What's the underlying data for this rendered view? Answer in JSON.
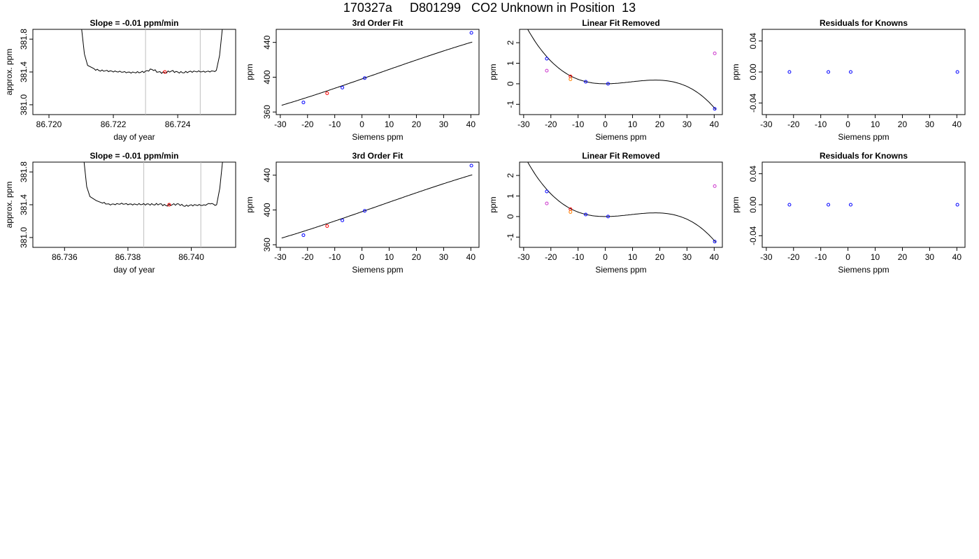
{
  "page_title": "170327a     D801299   CO2 Unknown in Position  13",
  "colors": {
    "trace": "#000000",
    "known": "#0000ff",
    "unknown": "#ff0000",
    "alt_known": "#cc33cc",
    "alt_known2": "#ff8000",
    "window_line": "#bfbfbf"
  },
  "chart_data": [
    {
      "type": "line",
      "title": "Slope =  -0.01  ppm/min",
      "xlabel": "day of year",
      "ylabel": "approx. ppm",
      "xlim": [
        86.7195,
        86.7258
      ],
      "ylim": [
        380.88,
        381.92
      ],
      "x_ticks": [
        "86.720",
        "86.722",
        "86.724"
      ],
      "x_tick_values": [
        86.72,
        86.722,
        86.724
      ],
      "y_ticks": [
        "381.0",
        "381.4",
        "381.8"
      ],
      "y_tick_values": [
        381.0,
        381.4,
        381.8
      ],
      "window": [
        86.723,
        86.7247
      ],
      "trace": [
        [
          86.721,
          381.98
        ],
        [
          86.7211,
          381.62
        ],
        [
          86.7212,
          381.48
        ],
        [
          86.7214,
          381.44
        ],
        [
          86.7216,
          381.41
        ],
        [
          86.7218,
          381.42
        ],
        [
          86.722,
          381.4
        ],
        [
          86.7222,
          381.41
        ],
        [
          86.7224,
          381.39
        ],
        [
          86.7226,
          381.4
        ],
        [
          86.7228,
          381.39
        ],
        [
          86.723,
          381.41
        ],
        [
          86.7232,
          381.43
        ],
        [
          86.7234,
          381.4
        ],
        [
          86.7236,
          381.39
        ],
        [
          86.7238,
          381.41
        ],
        [
          86.724,
          381.4
        ],
        [
          86.7242,
          381.39
        ],
        [
          86.7244,
          381.41
        ],
        [
          86.7246,
          381.4
        ],
        [
          86.7248,
          381.41
        ],
        [
          86.725,
          381.4
        ],
        [
          86.7252,
          381.42
        ],
        [
          86.7253,
          381.6
        ],
        [
          86.7254,
          381.98
        ]
      ],
      "points": [
        {
          "x": 86.7236,
          "y": 381.4,
          "color": "#ff0000"
        }
      ]
    },
    {
      "type": "scatter",
      "title": "3rd Order Fit",
      "xlabel": "Siemens ppm",
      "ylabel": "ppm",
      "xlim": [
        -31.5,
        43.0
      ],
      "ylim": [
        357.0,
        455.0
      ],
      "x_ticks": [
        "-30",
        "-20",
        "-10",
        "0",
        "10",
        "20",
        "30",
        "40"
      ],
      "x_tick_values": [
        -30,
        -20,
        -10,
        0,
        10,
        20,
        30,
        40
      ],
      "y_ticks": [
        "360",
        "400",
        "440"
      ],
      "y_tick_values": [
        360,
        400,
        440
      ],
      "curve": {
        "type": "cubic",
        "from": -29.5,
        "to": 40.5
      },
      "points": [
        {
          "x": -21.5,
          "y": 371.0,
          "color": "#0000ff"
        },
        {
          "x": -12.8,
          "y": 381.5,
          "color": "#ff0000"
        },
        {
          "x": -7.2,
          "y": 388.0,
          "color": "#0000ff"
        },
        {
          "x": 1.0,
          "y": 399.0,
          "color": "#0000ff"
        },
        {
          "x": 40.2,
          "y": 451.0,
          "color": "#0000ff"
        }
      ]
    },
    {
      "type": "scatter",
      "title": "Linear Fit Removed",
      "xlabel": "Siemens ppm",
      "ylabel": "ppm",
      "xlim": [
        -31.5,
        43.0
      ],
      "ylim": [
        -1.5,
        2.65
      ],
      "x_ticks": [
        "-30",
        "-20",
        "-10",
        "0",
        "10",
        "20",
        "30",
        "40"
      ],
      "x_tick_values": [
        -30,
        -20,
        -10,
        0,
        10,
        20,
        30,
        40
      ],
      "y_ticks": [
        "-1",
        "0",
        "1",
        "2"
      ],
      "y_tick_values": [
        -1,
        0,
        1,
        2
      ],
      "curve": {
        "type": "residual-cubic",
        "from": -30,
        "to": 40.5
      },
      "points": [
        {
          "x": -21.5,
          "y": 1.22,
          "color": "#0000ff"
        },
        {
          "x": -21.5,
          "y": 0.64,
          "color": "#cc33cc"
        },
        {
          "x": -12.8,
          "y": 0.36,
          "color": "#ff0000"
        },
        {
          "x": -12.8,
          "y": 0.22,
          "color": "#ff8000"
        },
        {
          "x": -7.2,
          "y": 0.1,
          "color": "#0000ff"
        },
        {
          "x": 1.0,
          "y": 0.0,
          "color": "#0000ff"
        },
        {
          "x": 40.2,
          "y": 1.48,
          "color": "#cc33cc"
        },
        {
          "x": 40.2,
          "y": -1.22,
          "color": "#0000ff"
        }
      ]
    },
    {
      "type": "scatter",
      "title": "Residuals for Knowns",
      "xlabel": "Siemens ppm",
      "ylabel": "ppm",
      "xlim": [
        -31.5,
        43.0
      ],
      "ylim": [
        -0.055,
        0.055
      ],
      "x_ticks": [
        "-30",
        "-20",
        "-10",
        "0",
        "10",
        "20",
        "30",
        "40"
      ],
      "x_tick_values": [
        -30,
        -20,
        -10,
        0,
        10,
        20,
        30,
        40
      ],
      "y_ticks": [
        "-0.04",
        "0.00",
        "0.04"
      ],
      "y_tick_values": [
        -0.04,
        0.0,
        0.04
      ],
      "points": [
        {
          "x": -21.5,
          "y": 0.0,
          "color": "#0000ff"
        },
        {
          "x": -7.2,
          "y": 0.0,
          "color": "#0000ff"
        },
        {
          "x": 1.0,
          "y": 0.0,
          "color": "#0000ff"
        },
        {
          "x": 40.2,
          "y": 0.0,
          "color": "#0000ff"
        }
      ]
    },
    {
      "type": "line",
      "title": "Slope =  -0.01  ppm/min",
      "xlabel": "day of year",
      "ylabel": "approx. ppm",
      "xlim": [
        86.735,
        86.7414
      ],
      "ylim": [
        380.88,
        381.92
      ],
      "x_ticks": [
        "86.736",
        "86.738",
        "86.740"
      ],
      "x_tick_values": [
        86.736,
        86.738,
        86.74
      ],
      "y_ticks": [
        "381.0",
        "381.4",
        "381.8"
      ],
      "y_tick_values": [
        381.0,
        381.4,
        381.8
      ],
      "window": [
        86.7385,
        86.7403
      ],
      "trace": [
        [
          86.7366,
          381.98
        ],
        [
          86.7367,
          381.62
        ],
        [
          86.7368,
          381.5
        ],
        [
          86.737,
          381.45
        ],
        [
          86.7372,
          381.42
        ],
        [
          86.7374,
          381.41
        ],
        [
          86.7376,
          381.4
        ],
        [
          86.7378,
          381.42
        ],
        [
          86.738,
          381.4
        ],
        [
          86.7382,
          381.41
        ],
        [
          86.7384,
          381.4
        ],
        [
          86.7386,
          381.41
        ],
        [
          86.7388,
          381.4
        ],
        [
          86.739,
          381.41
        ],
        [
          86.7392,
          381.39
        ],
        [
          86.7394,
          381.4
        ],
        [
          86.7396,
          381.41
        ],
        [
          86.7398,
          381.38
        ],
        [
          86.74,
          381.4
        ],
        [
          86.7402,
          381.39
        ],
        [
          86.7404,
          381.4
        ],
        [
          86.7406,
          381.41
        ],
        [
          86.7408,
          381.4
        ],
        [
          86.7409,
          381.6
        ],
        [
          86.741,
          381.98
        ]
      ],
      "points": [
        {
          "x": 86.7393,
          "y": 381.4,
          "color": "#ff0000"
        }
      ]
    },
    {
      "type": "scatter",
      "title": "3rd Order Fit",
      "xlabel": "Siemens ppm",
      "ylabel": "ppm",
      "xlim": [
        -31.5,
        43.0
      ],
      "ylim": [
        357.0,
        455.0
      ],
      "x_ticks": [
        "-30",
        "-20",
        "-10",
        "0",
        "10",
        "20",
        "30",
        "40"
      ],
      "x_tick_values": [
        -30,
        -20,
        -10,
        0,
        10,
        20,
        30,
        40
      ],
      "y_ticks": [
        "360",
        "400",
        "440"
      ],
      "y_tick_values": [
        360,
        400,
        440
      ],
      "curve": {
        "type": "cubic",
        "from": -29.5,
        "to": 40.5
      },
      "points": [
        {
          "x": -21.5,
          "y": 371.0,
          "color": "#0000ff"
        },
        {
          "x": -12.8,
          "y": 381.5,
          "color": "#ff0000"
        },
        {
          "x": -7.2,
          "y": 388.0,
          "color": "#0000ff"
        },
        {
          "x": 1.0,
          "y": 399.0,
          "color": "#0000ff"
        },
        {
          "x": 40.2,
          "y": 451.0,
          "color": "#0000ff"
        }
      ]
    },
    {
      "type": "scatter",
      "title": "Linear Fit Removed",
      "xlabel": "Siemens ppm",
      "ylabel": "ppm",
      "xlim": [
        -31.5,
        43.0
      ],
      "ylim": [
        -1.5,
        2.65
      ],
      "x_ticks": [
        "-30",
        "-20",
        "-10",
        "0",
        "10",
        "20",
        "30",
        "40"
      ],
      "x_tick_values": [
        -30,
        -20,
        -10,
        0,
        10,
        20,
        30,
        40
      ],
      "y_ticks": [
        "-1",
        "0",
        "1",
        "2"
      ],
      "y_tick_values": [
        -1,
        0,
        1,
        2
      ],
      "curve": {
        "type": "residual-cubic",
        "from": -30,
        "to": 40.5
      },
      "points": [
        {
          "x": -21.5,
          "y": 1.22,
          "color": "#0000ff"
        },
        {
          "x": -21.5,
          "y": 0.64,
          "color": "#cc33cc"
        },
        {
          "x": -12.8,
          "y": 0.36,
          "color": "#ff0000"
        },
        {
          "x": -12.8,
          "y": 0.22,
          "color": "#ff8000"
        },
        {
          "x": -7.2,
          "y": 0.1,
          "color": "#0000ff"
        },
        {
          "x": 1.0,
          "y": 0.0,
          "color": "#0000ff"
        },
        {
          "x": 40.2,
          "y": 1.48,
          "color": "#cc33cc"
        },
        {
          "x": 40.2,
          "y": -1.22,
          "color": "#0000ff"
        }
      ]
    },
    {
      "type": "scatter",
      "title": "Residuals for Knowns",
      "xlabel": "Siemens ppm",
      "ylabel": "ppm",
      "xlim": [
        -31.5,
        43.0
      ],
      "ylim": [
        -0.055,
        0.055
      ],
      "x_ticks": [
        "-30",
        "-20",
        "-10",
        "0",
        "10",
        "20",
        "30",
        "40"
      ],
      "x_tick_values": [
        -30,
        -20,
        -10,
        0,
        10,
        20,
        30,
        40
      ],
      "y_ticks": [
        "-0.04",
        "0.00",
        "0.04"
      ],
      "y_tick_values": [
        -0.04,
        0.0,
        0.04
      ],
      "points": [
        {
          "x": -21.5,
          "y": 0.0,
          "color": "#0000ff"
        },
        {
          "x": -7.2,
          "y": 0.0,
          "color": "#0000ff"
        },
        {
          "x": 1.0,
          "y": 0.0,
          "color": "#0000ff"
        },
        {
          "x": 40.2,
          "y": 0.0,
          "color": "#0000ff"
        }
      ]
    }
  ]
}
